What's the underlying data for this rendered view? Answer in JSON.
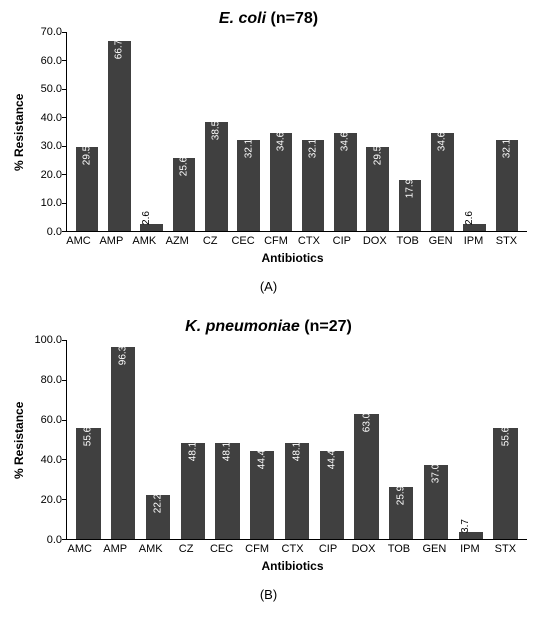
{
  "charts": [
    {
      "id": "chartA",
      "species": "E. coli",
      "n_label": "(n=78)",
      "ylabel": "% Resistance",
      "xlabel": "Antibiotics",
      "ylim": [
        0,
        70
      ],
      "ytick_step": 10,
      "bar_color": "#404040",
      "background_color": "#ffffff",
      "label_outside_threshold": 8,
      "bar_width": 0.7,
      "title_fontsize": 16,
      "axis_fontsize": 11,
      "label_fontsize": 12,
      "value_fontsize": 10,
      "categories": [
        "AMC",
        "AMP",
        "AMK",
        "AZM",
        "CZ",
        "CEC",
        "CFM",
        "CTX",
        "CIP",
        "DOX",
        "TOB",
        "GEN",
        "IPM",
        "STX"
      ],
      "values": [
        29.5,
        66.7,
        2.6,
        25.6,
        38.5,
        32.1,
        34.6,
        32.1,
        34.6,
        29.5,
        17.9,
        34.6,
        2.6,
        32.1
      ],
      "panel_letter": "(A)"
    },
    {
      "id": "chartB",
      "species": "K. pneumoniae",
      "n_label": "(n=27)",
      "ylabel": "% Resistance",
      "xlabel": "Antibiotics",
      "ylim": [
        0,
        100
      ],
      "ytick_step": 20,
      "bar_color": "#404040",
      "background_color": "#ffffff",
      "label_outside_threshold": 8,
      "bar_width": 0.7,
      "title_fontsize": 16,
      "axis_fontsize": 11,
      "label_fontsize": 12,
      "value_fontsize": 10,
      "categories": [
        "AMC",
        "AMP",
        "AMK",
        "CZ",
        "CEC",
        "CFM",
        "CTX",
        "CIP",
        "DOX",
        "TOB",
        "GEN",
        "IPM",
        "STX"
      ],
      "values": [
        55.6,
        96.3,
        22.2,
        48.1,
        48.1,
        44.4,
        48.1,
        44.4,
        63.0,
        25.9,
        37.0,
        3.7,
        55.6
      ],
      "panel_letter": "(B)"
    }
  ]
}
